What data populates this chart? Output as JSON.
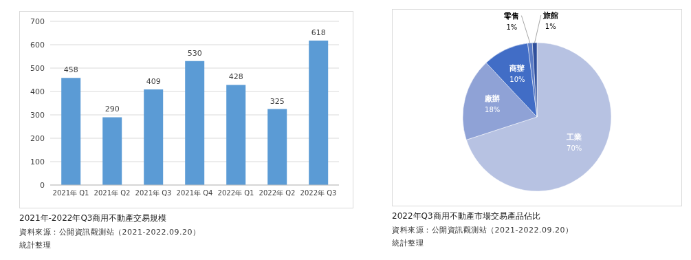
{
  "chart_data": [
    {
      "type": "bar",
      "title": "2021年-2022年Q3商用不動產交易規模",
      "annotations": [
        "資料來源：公開資訊觀測站（2021-2022.09.20）",
        "統計整理"
      ],
      "categories": [
        "2021年 Q1",
        "2021年 Q2",
        "2021年 Q3",
        "2021年 Q4",
        "2022年 Q1",
        "2022年 Q2",
        "2022年 Q3"
      ],
      "values": [
        458,
        290,
        409,
        530,
        428,
        325,
        618
      ],
      "color": "#5b9bd5",
      "ylim": [
        0,
        700
      ],
      "yticks": [
        0,
        100,
        200,
        300,
        400,
        500,
        600,
        700
      ],
      "grid": "y",
      "data_labels": true
    },
    {
      "type": "pie",
      "title": "2022年Q3商用不動產市場交易產品佔比",
      "annotations": [
        "資料來源：公開資訊觀測站（2021-2022.09.20）",
        "統計整理"
      ],
      "categories": [
        "工業",
        "廠辦",
        "商辦",
        "零售",
        "旅館"
      ],
      "values": [
        70,
        18,
        10,
        1,
        1
      ],
      "colors": [
        "#b7c2e2",
        "#8fa2d6",
        "#416dc6",
        "#5b7cc6",
        "#30509c"
      ],
      "value_labels": [
        "70%",
        "18%",
        "10%",
        "1%",
        "1%"
      ]
    }
  ]
}
